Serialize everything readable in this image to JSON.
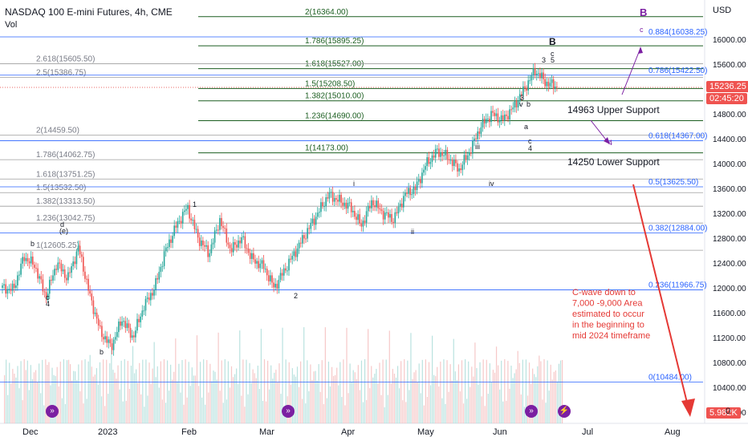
{
  "header": {
    "title": "NASDAQ 100 E-mini Futures, 4h, CME",
    "volume_label": "Vol"
  },
  "price_scale": {
    "currency": "USD",
    "current_price": "15236.25",
    "countdown": "02:45:20",
    "bottom_value": "5.982K",
    "bottom_zero": "0"
  },
  "colors": {
    "up": "#26a69a",
    "down": "#ef5350",
    "green_line": "#1b5e20",
    "blue_line": "#2962ff",
    "gray_line": "#9e9e9e",
    "purple": "#7b1fa2",
    "red_arrow": "#e53935",
    "volume": "#ef9a9a"
  },
  "chart_data": {
    "type": "candlestick",
    "y_ticks": [
      10000,
      10400,
      10800,
      11200,
      11600,
      12000,
      12400,
      12800,
      13200,
      13600,
      14000,
      14400,
      14800,
      15200,
      15600,
      16000
    ],
    "y_ticks_labels": [
      "10000.00",
      "10400.00",
      "10800.00",
      "11200.00",
      "11600.00",
      "12000.00",
      "12400.00",
      "12800.00",
      "13200.00",
      "13600.00",
      "14000.00",
      "14400.00",
      "14800.00",
      "15200.00",
      "15600.00",
      "16000.00"
    ],
    "x_ticks": [
      "Dec",
      "2023",
      "Feb",
      "Mar",
      "Apr",
      "May",
      "Jun",
      "Jul",
      "Aug"
    ],
    "price_path": [
      [
        12000,
        11970,
        12500,
        12350,
        11850,
        12400,
        12150,
        12650,
        11900,
        11300,
        11050,
        11500,
        11200,
        11700,
        12000,
        12600,
        13000,
        13300,
        12800,
        12550,
        13100,
        12600,
        12800,
        12450,
        12350,
        12000,
        12300,
        12600,
        12900,
        13200,
        13500,
        13400,
        13300,
        13000,
        13400,
        13200,
        13100,
        13500,
        13600,
        14000,
        14200,
        14100,
        13900,
        14200,
        14600,
        14800,
        14700,
        14900,
        15200,
        15500,
        15300,
        15240
      ]
    ],
    "fib_levels_green": [
      {
        "label": "2(16364.00)",
        "value": 16364
      },
      {
        "label": "1.786(15895.25)",
        "value": 15895.25
      },
      {
        "label": "1.618(15527.00)",
        "value": 15527
      },
      {
        "label": "1.5(15208.50)",
        "value": 15208.5
      },
      {
        "label": "1.382(15010.00)",
        "value": 15010
      },
      {
        "label": "1.236(14690.00)",
        "value": 14690
      },
      {
        "label": "1(14173.00)",
        "value": 14173
      }
    ],
    "fib_levels_gray": [
      {
        "label": "2.618(15605.50)",
        "value": 15605.5
      },
      {
        "label": "2.5(15386.75)",
        "value": 15386.75
      },
      {
        "label": "2(14459.50)",
        "value": 14459.5
      },
      {
        "label": "1.786(14062.75)",
        "value": 14062.75
      },
      {
        "label": "1.618(13751.25)",
        "value": 13751.25
      },
      {
        "label": "1.5(13532.50)",
        "value": 13532.5
      },
      {
        "label": "1.382(13313.50)",
        "value": 13313.5
      },
      {
        "label": "1.236(13042.75)",
        "value": 13042.75
      },
      {
        "label": "1(12605.25)",
        "value": 12605.25
      }
    ],
    "fib_levels_blue": [
      {
        "label": "0.884(16038.25)",
        "value": 16038.25
      },
      {
        "label": "0.786(15422.50)",
        "value": 15422.5
      },
      {
        "label": "0.618(14367.00)",
        "value": 14367
      },
      {
        "label": "0.5(13625.50)",
        "value": 13625.5
      },
      {
        "label": "0.382(12884.00)",
        "value": 12884
      },
      {
        "label": "0.236(11966.75)",
        "value": 11966.75
      },
      {
        "label": "0(10484.00)",
        "value": 10484
      }
    ],
    "annotations": {
      "upper_support": "14963 Upper Support",
      "lower_support": "14250 Lower Support",
      "c_wave_note": [
        "C-wave down to",
        "7,000 -9,000 Area",
        "estimated to occur",
        "in the beginning to",
        "mid 2024 timeframe"
      ]
    },
    "wave_labels": [
      "B",
      "B",
      "b",
      "4",
      "c",
      "b",
      "1",
      "2",
      "i",
      "ii",
      "iii",
      "iv",
      "3",
      "v",
      "a",
      "b",
      "c",
      "4",
      "3",
      "5",
      "c",
      "a",
      "c",
      "4",
      "d",
      "(e)",
      "2"
    ]
  }
}
